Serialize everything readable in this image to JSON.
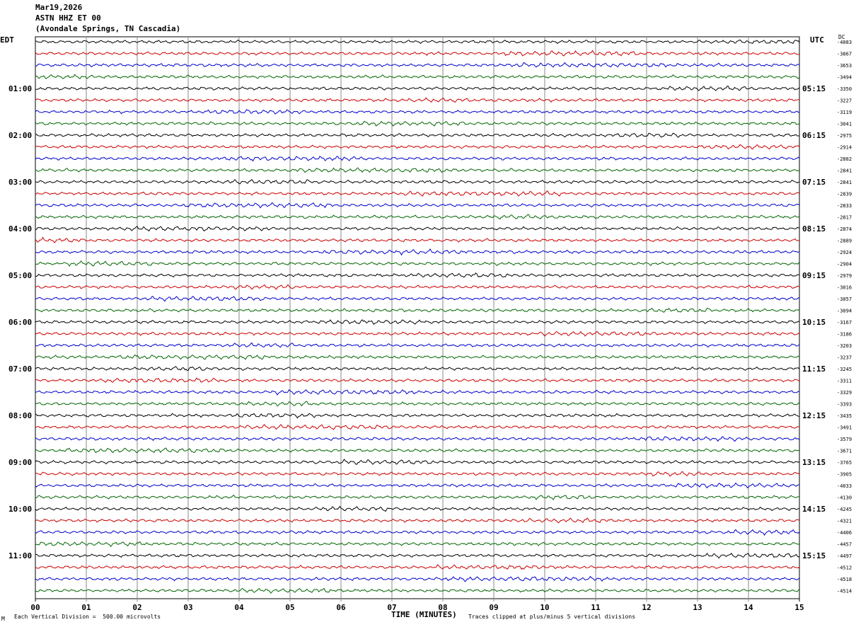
{
  "header": {
    "date": "Mar19,2026",
    "station": "ASTN HHZ ET 00",
    "location": "(Avondale Springs, TN Cascadia)"
  },
  "left_timezone": "EDT",
  "right_timezone": "UTC",
  "dc_label": "DC",
  "footer": {
    "marker": "M",
    "scale_note": "Each Vertical Division =  500.00 microvolts",
    "clip_note": "Traces clipped at plus/minus 5 vertical divisions"
  },
  "colors": {
    "trace_cycle": [
      "#000000",
      "#cc0000",
      "#0000cc",
      "#006600"
    ],
    "grid": "#888888"
  },
  "chart_data": {
    "type": "line",
    "title": "ASTN HHZ ET 00",
    "xlabel": "TIME (MINUTES)",
    "xlim": [
      0,
      15
    ],
    "x_ticks": [
      "00",
      "01",
      "02",
      "03",
      "04",
      "05",
      "06",
      "07",
      "08",
      "09",
      "10",
      "11",
      "12",
      "13",
      "14",
      "15"
    ],
    "rows_per_hour": 4,
    "left_hour_labels": [
      "01:00",
      "02:00",
      "03:00",
      "04:00",
      "05:00",
      "06:00",
      "07:00",
      "08:00",
      "09:00",
      "10:00",
      "11:00"
    ],
    "right_hour_labels": [
      "05:15",
      "06:15",
      "07:15",
      "08:15",
      "09:15",
      "10:15",
      "11:15",
      "12:15",
      "13:15",
      "14:15",
      "15:15"
    ],
    "dc_offsets": [
      -4083,
      -3867,
      -3653,
      -3494,
      -3350,
      -3227,
      -3119,
      -3041,
      -2975,
      -2914,
      -2882,
      -2841,
      -2841,
      -2839,
      -2833,
      -2817,
      -2874,
      -2889,
      -2924,
      -2904,
      -2979,
      -3016,
      -3057,
      -3094,
      -3167,
      -3186,
      -3203,
      -3237,
      -3245,
      -3311,
      -3329,
      -3393,
      -3435,
      -3491,
      -3579,
      -3671,
      -3765,
      -3905,
      -4033,
      -4130,
      -4245,
      -4321,
      -4406,
      -4457,
      -4497,
      -4512,
      -4518,
      -4514
    ]
  }
}
